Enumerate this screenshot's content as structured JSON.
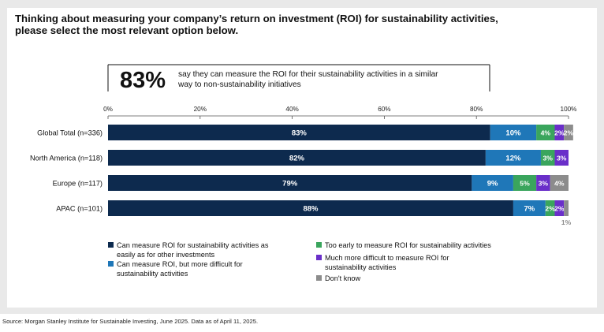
{
  "title": "Thinking about measuring your company’s return on investment (ROI) for sustainability activities, please select the most relevant option below.",
  "source": "Source: Morgan Stanley Institute for Sustainable Investing, June 2025. Data as of April 11, 2025.",
  "chart_data": {
    "type": "bar",
    "orientation": "horizontal",
    "stacked": true,
    "callout": {
      "value": "83%",
      "text_line1": "say they can measure the ROI for their sustainability activities in a similar",
      "text_line2": "way to non-sustainability initiatives"
    },
    "categories": [
      "Global Total (n=336)",
      "North America (n=118)",
      "Europe (n=117)",
      "APAC (n=101)"
    ],
    "xlim": [
      0,
      100
    ],
    "x_ticks": [
      "0%",
      "20%",
      "40%",
      "60%",
      "80%",
      "100%"
    ],
    "grid": false,
    "series": [
      {
        "name": "Can measure ROI for sustainability activities as easily as for other investments",
        "color": "#0d2a4e",
        "values": [
          83,
          82,
          79,
          88
        ],
        "labels": [
          "83%",
          "82%",
          "79%",
          "88%"
        ]
      },
      {
        "name": "Can measure ROI, but more difficult for sustainability activities",
        "color": "#1f77b8",
        "values": [
          10,
          12,
          9,
          7
        ],
        "labels": [
          "10%",
          "12%",
          "9%",
          "7%"
        ]
      },
      {
        "name": "Too early to measure ROI for sustainability activities",
        "color": "#3aa55d",
        "values": [
          4,
          3,
          5,
          2
        ],
        "labels": [
          "4%",
          "3%",
          "5%",
          "2%"
        ]
      },
      {
        "name": "Much more difficult to measure ROI for sustainability activities",
        "color": "#6a2fc9",
        "values": [
          2,
          3,
          3,
          2
        ],
        "labels": [
          "2%",
          "3%",
          "3%",
          "2%"
        ]
      },
      {
        "name": "Don't know",
        "color": "#8c8c8c",
        "values": [
          2,
          0,
          4,
          1
        ],
        "labels": [
          "2%",
          "",
          "4%",
          "1%"
        ]
      }
    ],
    "legend": {
      "placement": "bottom",
      "col1": [
        {
          "color": "#0d2a4e",
          "line1": "Can measure ROI for sustainability activities as",
          "line2": "easily as for other investments"
        },
        {
          "color": "#1f77b8",
          "line1": "Can measure ROI, but more difficult for",
          "line2": "sustainability activities"
        }
      ],
      "col2": [
        {
          "color": "#3aa55d",
          "line1": "Too early to measure ROI for sustainability activities",
          "line2": ""
        },
        {
          "color": "#6a2fc9",
          "line1": "Much more difficult to measure ROI for",
          "line2": "sustainability activities"
        },
        {
          "color": "#8c8c8c",
          "line1": "Don't know",
          "line2": ""
        }
      ]
    }
  }
}
